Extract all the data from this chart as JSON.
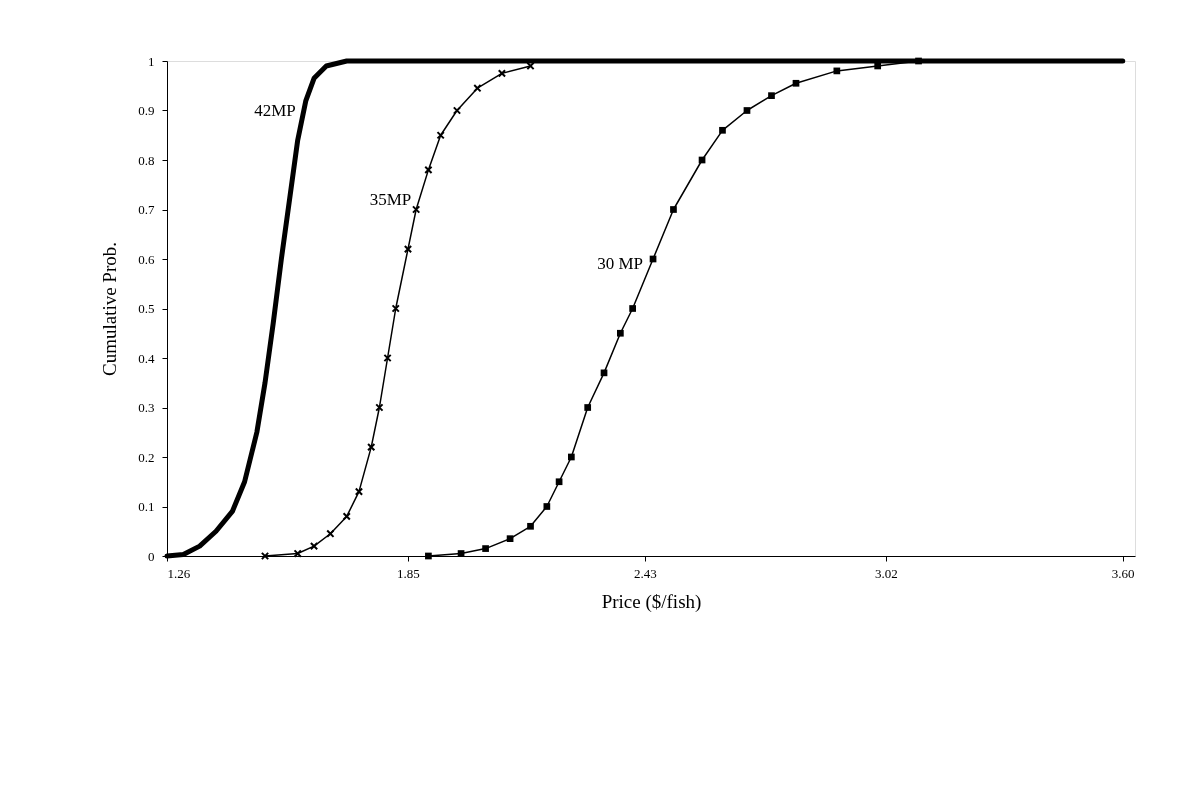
{
  "chart_data": {
    "type": "line",
    "xlabel": "Price ($/fish)",
    "ylabel": "Cumulative Prob.",
    "xlim": [
      1.26,
      3.63
    ],
    "ylim": [
      0,
      1
    ],
    "xticks": [
      1.26,
      1.85,
      2.43,
      3.02,
      {
        "value": 3.6,
        "label": "3.60"
      }
    ],
    "yticks": [
      0,
      0.1,
      0.2,
      0.3,
      0.4,
      0.5,
      0.6,
      0.7,
      0.8,
      0.9,
      1
    ],
    "grid": false,
    "line_style": "solid",
    "series": [
      {
        "name": "42MP",
        "color": "#000000",
        "marker": "none",
        "x": [
          1.26,
          1.3,
          1.34,
          1.38,
          1.42,
          1.45,
          1.48,
          1.5,
          1.52,
          1.54,
          1.56,
          1.58,
          1.6,
          1.62,
          1.65,
          1.7,
          3.6
        ],
        "values": [
          0,
          0.003,
          0.02,
          0.05,
          0.09,
          0.15,
          0.25,
          0.35,
          0.47,
          0.6,
          0.72,
          0.84,
          0.92,
          0.965,
          0.99,
          1,
          1
        ]
      },
      {
        "name": "35MP",
        "color": "#000000",
        "marker": "cross",
        "x": [
          1.5,
          1.58,
          1.62,
          1.66,
          1.7,
          1.73,
          1.76,
          1.78,
          1.8,
          1.82,
          1.85,
          1.87,
          1.9,
          1.93,
          1.97,
          2.02,
          2.08,
          2.15
        ],
        "values": [
          0,
          0.005,
          0.02,
          0.045,
          0.08,
          0.13,
          0.22,
          0.3,
          0.4,
          0.5,
          0.62,
          0.7,
          0.78,
          0.85,
          0.9,
          0.945,
          0.975,
          0.99
        ]
      },
      {
        "name": "30 MP",
        "color": "#000000",
        "marker": "square",
        "x": [
          1.9,
          1.98,
          2.04,
          2.1,
          2.15,
          2.19,
          2.22,
          2.25,
          2.29,
          2.33,
          2.37,
          2.4,
          2.45,
          2.5,
          2.57,
          2.62,
          2.68,
          2.74,
          2.8,
          2.9,
          3.0,
          3.1
        ],
        "values": [
          0,
          0.005,
          0.015,
          0.035,
          0.06,
          0.1,
          0.15,
          0.2,
          0.3,
          0.37,
          0.45,
          0.5,
          0.6,
          0.7,
          0.8,
          0.86,
          0.9,
          0.93,
          0.955,
          0.98,
          0.99,
          1
        ]
      }
    ]
  }
}
